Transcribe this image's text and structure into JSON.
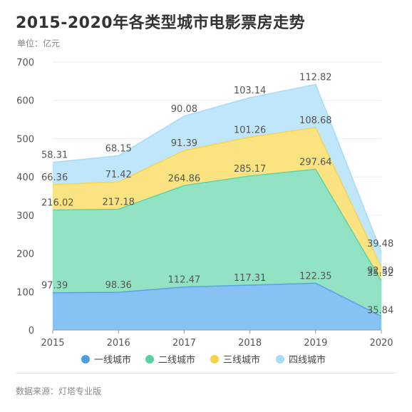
{
  "title": "2015-2020年各类型城市电影票房走势",
  "unit": "单位：亿元",
  "source": "数据来源：灯塔专业版",
  "chart_data": {
    "type": "area",
    "stacked": true,
    "title": "2015-2020年各类型城市电影票房走势",
    "ylabel": "单位：亿元",
    "x": [
      "2015",
      "2016",
      "2017",
      "2018",
      "2019",
      "2020"
    ],
    "ylim": [
      0,
      700
    ],
    "yticks": [
      "0",
      "100",
      "200",
      "300",
      "400",
      "500",
      "600",
      "700"
    ],
    "grid": true,
    "legend": "bottom",
    "series": [
      {
        "name": "一线城市",
        "values": [
          97.39,
          98.36,
          112.47,
          117.31,
          122.35,
          35.84
        ],
        "labels": [
          "97.39",
          "98.36",
          "112.47",
          "117.31",
          "122.35",
          "35.84"
        ],
        "color": "#86c2f3",
        "line": "#5aa3e6",
        "dot": "#4e9fe0"
      },
      {
        "name": "二线城市",
        "values": [
          216.02,
          217.18,
          264.86,
          285.17,
          297.64,
          92.3
        ],
        "labels": [
          "216.02",
          "217.18",
          "264.86",
          "285.17",
          "297.64",
          "92.30"
        ],
        "color": "#92e3c4",
        "line": "#5fd3a6",
        "dot": "#54d19e"
      },
      {
        "name": "三线城市",
        "values": [
          66.36,
          71.42,
          91.39,
          101.26,
          108.68,
          35.52
        ],
        "labels": [
          "66.36",
          "71.42",
          "91.39",
          "101.26",
          "108.68",
          "35.52"
        ],
        "color": "#fbe382",
        "line": "#f6d550",
        "dot": "#f8d24a"
      },
      {
        "name": "四线城市",
        "values": [
          58.31,
          68.15,
          90.08,
          103.14,
          112.82,
          39.48
        ],
        "labels": [
          "58.31",
          "68.15",
          "90.08",
          "103.14",
          "112.82",
          "39.48"
        ],
        "color": "#bfe6fa",
        "line": "#a6dcf7",
        "dot": "#a9ddf7"
      }
    ]
  }
}
